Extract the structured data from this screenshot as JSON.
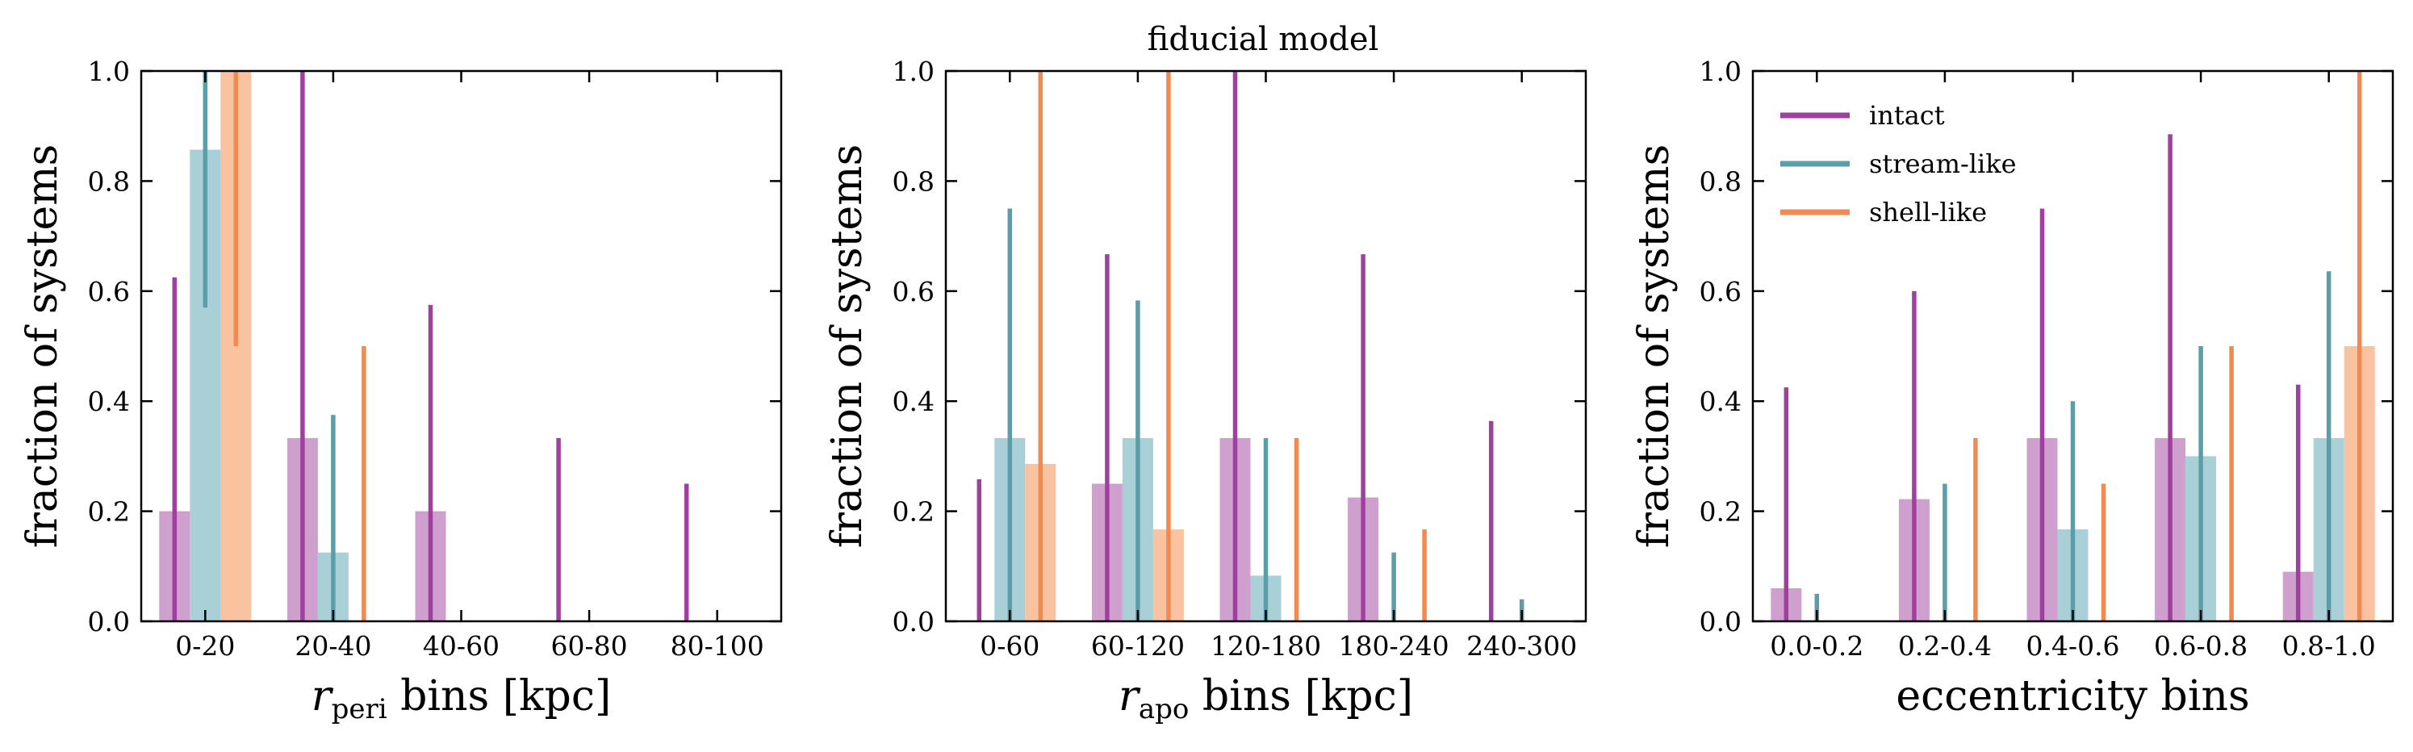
{
  "figure_title": "fiducial model",
  "colors": {
    "intact": "#a0409e",
    "stream-like": "#5b9ea9",
    "shell-like": "#f08a50",
    "intact_bar": "#cf9fce",
    "stream-like_bar": "#a9d0d6",
    "shell-like_bar": "#f9c3a2",
    "axes": "#000000"
  },
  "chart_data": [
    {
      "type": "bar",
      "panel": "left",
      "xlabel_main": "r",
      "xlabel_sub": "peri",
      "xlabel_tail": " bins [kpc]",
      "ylabel": "fraction of systems",
      "ylim": [
        0,
        1
      ],
      "yticks": [
        "0.0",
        "0.2",
        "0.4",
        "0.6",
        "0.8",
        "1.0"
      ],
      "categories": [
        "0-20",
        "20-40",
        "40-60",
        "60-80",
        "80-100"
      ],
      "series": [
        {
          "name": "intact",
          "values": [
            0.2,
            0.333,
            0.2,
            null,
            null
          ],
          "lines": [
            0.625,
            1.0,
            0.575,
            0.333,
            0.25
          ]
        },
        {
          "name": "stream-like",
          "values": [
            0.857,
            0.125,
            null,
            null,
            null
          ],
          "lines": [
            [
              0.57,
              1.0
            ],
            0.375,
            null,
            null,
            null
          ]
        },
        {
          "name": "shell-like",
          "values": [
            1.0,
            null,
            null,
            null,
            null
          ],
          "lines": [
            [
              0.5,
              1.0
            ],
            0.5,
            null,
            null,
            null
          ]
        }
      ]
    },
    {
      "type": "bar",
      "panel": "middle",
      "xlabel_main": "r",
      "xlabel_sub": "apo",
      "xlabel_tail": " bins [kpc]",
      "ylabel": "fraction of systems",
      "ylim": [
        0,
        1
      ],
      "yticks": [
        "0.0",
        "0.2",
        "0.4",
        "0.6",
        "0.8",
        "1.0"
      ],
      "categories": [
        "0-60",
        "60-120",
        "120-180",
        "180-240",
        "240-300"
      ],
      "series": [
        {
          "name": "intact",
          "values": [
            null,
            0.25,
            0.333,
            0.225,
            null
          ],
          "lines": [
            0.258,
            0.667,
            1.0,
            0.667,
            0.364
          ]
        },
        {
          "name": "stream-like",
          "values": [
            0.333,
            0.333,
            0.083,
            null,
            null
          ],
          "lines": [
            0.75,
            0.583,
            0.333,
            0.125,
            0.04
          ]
        },
        {
          "name": "shell-like",
          "values": [
            0.286,
            0.167,
            null,
            null,
            null
          ],
          "lines": [
            1.0,
            1.0,
            0.333,
            0.167,
            null
          ]
        }
      ]
    },
    {
      "type": "bar",
      "panel": "right",
      "xlabel_main": "eccentricity bins",
      "xlabel_sub": "",
      "xlabel_tail": "",
      "ylabel": "fraction of systems",
      "ylim": [
        0,
        1
      ],
      "yticks": [
        "0.0",
        "0.2",
        "0.4",
        "0.6",
        "0.8",
        "1.0"
      ],
      "categories": [
        "0.0-0.2",
        "0.2-0.4",
        "0.4-0.6",
        "0.6-0.8",
        "0.8-1.0"
      ],
      "legend": {
        "location": "upper-left",
        "entries": [
          "intact",
          "stream-like",
          "shell-like"
        ]
      },
      "series": [
        {
          "name": "intact",
          "values": [
            0.06,
            0.222,
            0.333,
            0.333,
            0.09
          ],
          "lines": [
            0.425,
            0.6,
            0.75,
            0.885,
            0.43
          ]
        },
        {
          "name": "stream-like",
          "values": [
            null,
            null,
            0.167,
            0.3,
            0.333
          ],
          "lines": [
            0.05,
            0.25,
            0.4,
            0.5,
            0.636
          ]
        },
        {
          "name": "shell-like",
          "values": [
            null,
            null,
            null,
            null,
            0.5
          ],
          "lines": [
            null,
            0.333,
            0.25,
            0.5,
            1.0
          ]
        }
      ]
    }
  ]
}
